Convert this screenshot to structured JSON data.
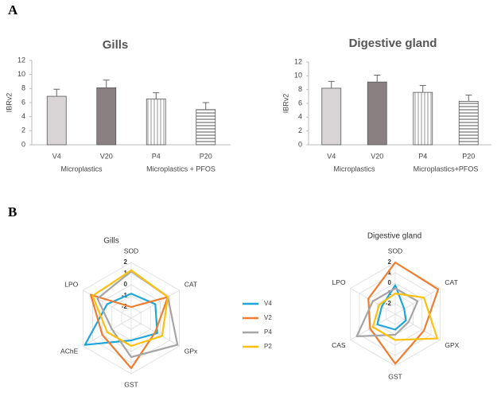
{
  "panel_labels": [
    "A",
    "B"
  ],
  "chart_data": [
    {
      "type": "bar",
      "title": "Gills",
      "y_label": "IBRv2",
      "categories": [
        "V4",
        "V20",
        "P4",
        "P20"
      ],
      "values": [
        6.9,
        8.1,
        6.5,
        5.0
      ],
      "errors": [
        1.0,
        1.1,
        0.9,
        1.0
      ],
      "groups": [
        "Microplastics",
        "Microplastics + PFOS"
      ],
      "colors": [
        "#d9d5d6",
        "#8a8082",
        "#ffffff",
        "#ffffff"
      ],
      "patterns": [
        "solid",
        "solid",
        "vertical",
        "horizontal"
      ],
      "ylim": [
        0,
        12
      ],
      "yticks": [
        0,
        2,
        4,
        6,
        8,
        10,
        12
      ]
    },
    {
      "type": "bar",
      "title": "Digestive gland",
      "y_label": "IBRv2",
      "categories": [
        "V4",
        "V20",
        "P4",
        "P20"
      ],
      "values": [
        8.2,
        9.1,
        7.6,
        6.3
      ],
      "errors": [
        1.0,
        1.0,
        1.0,
        0.9
      ],
      "groups": [
        "Microplastics",
        "Microplastics+PFOS"
      ],
      "colors": [
        "#d9d5d6",
        "#8a8082",
        "#ffffff",
        "#ffffff"
      ],
      "patterns": [
        "solid",
        "solid",
        "vertical",
        "horizontal"
      ],
      "ylim": [
        0,
        12
      ],
      "yticks": [
        0,
        2,
        4,
        6,
        8,
        10,
        12
      ]
    },
    {
      "type": "radar",
      "title": "Gills",
      "categories": [
        "SOD",
        "CAT",
        "GPx",
        "GST",
        "AChE",
        "LPO"
      ],
      "rlim": [
        -3,
        2
      ],
      "rticks": [
        -2,
        -1,
        0,
        1,
        2
      ],
      "series": [
        {
          "name": "V4",
          "color": "#1fa6d8",
          "values": [
            -0.8,
            -0.5,
            -0.3,
            -1,
            1.8,
            -0.5
          ]
        },
        {
          "name": "V2",
          "color": "#ed7d31",
          "values": [
            -2,
            0.8,
            -0.5,
            1.5,
            0,
            1.2
          ]
        },
        {
          "name": "P4",
          "color": "#a5a5a5",
          "values": [
            1.2,
            0.8,
            1.8,
            0.5,
            -1,
            0.5
          ]
        },
        {
          "name": "P2",
          "color": "#fcc010",
          "values": [
            1.3,
            0.8,
            0.2,
            -0.5,
            -0.5,
            1
          ]
        }
      ]
    },
    {
      "type": "radar",
      "title": "Digestive gland",
      "categories": [
        "SOD",
        "CAT",
        "GPX",
        "GST",
        "CAS",
        "LPO"
      ],
      "rlim": [
        -3,
        2
      ],
      "rticks": [
        -2,
        -1,
        0,
        1,
        2
      ],
      "series": [
        {
          "color": "#1fa6d8",
          "values": [
            -0.2,
            -2,
            -1.8,
            -1.5,
            -1,
            -1.5
          ]
        },
        {
          "color": "#ed7d31",
          "values": [
            2,
            1.8,
            0.2,
            1.8,
            -0.2,
            0
          ]
        },
        {
          "color": "#a5a5a5",
          "values": [
            -0.5,
            -0.5,
            -1.5,
            -1,
            1.3,
            -0.5
          ]
        },
        {
          "color": "#fcc010",
          "values": [
            -1,
            0.2,
            1.7,
            -0.5,
            -0.5,
            -1.2
          ]
        }
      ]
    }
  ]
}
